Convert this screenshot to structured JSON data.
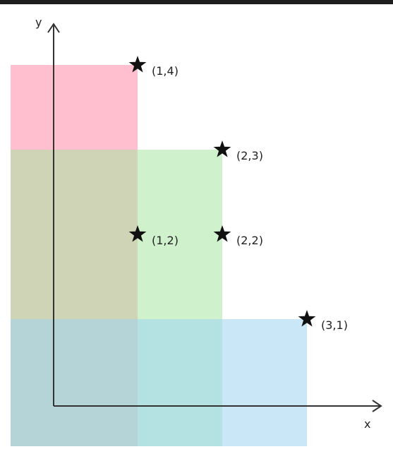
{
  "axes": {
    "x_label": "x",
    "y_label": "y"
  },
  "colors": {
    "pink": "#ff8aa6",
    "green": "#a8e6a3",
    "blue": "#9fd4f2",
    "axis": "#333333",
    "star": "#111111"
  },
  "regions": [
    {
      "name": "pink-region",
      "color_key": "pink",
      "x_to": 1,
      "y_to": 4
    },
    {
      "name": "green-region",
      "color_key": "green",
      "x_to": 2,
      "y_to": 3
    },
    {
      "name": "blue-region",
      "color_key": "blue",
      "x_to": 3,
      "y_to": 1
    }
  ],
  "points": [
    {
      "x": 1,
      "y": 4,
      "label": "(1,4)"
    },
    {
      "x": 2,
      "y": 3,
      "label": "(2,3)"
    },
    {
      "x": 1,
      "y": 2,
      "label": "(1,2)"
    },
    {
      "x": 2,
      "y": 2,
      "label": "(2,2)"
    },
    {
      "x": 3,
      "y": 1,
      "label": "(3,1)"
    }
  ]
}
